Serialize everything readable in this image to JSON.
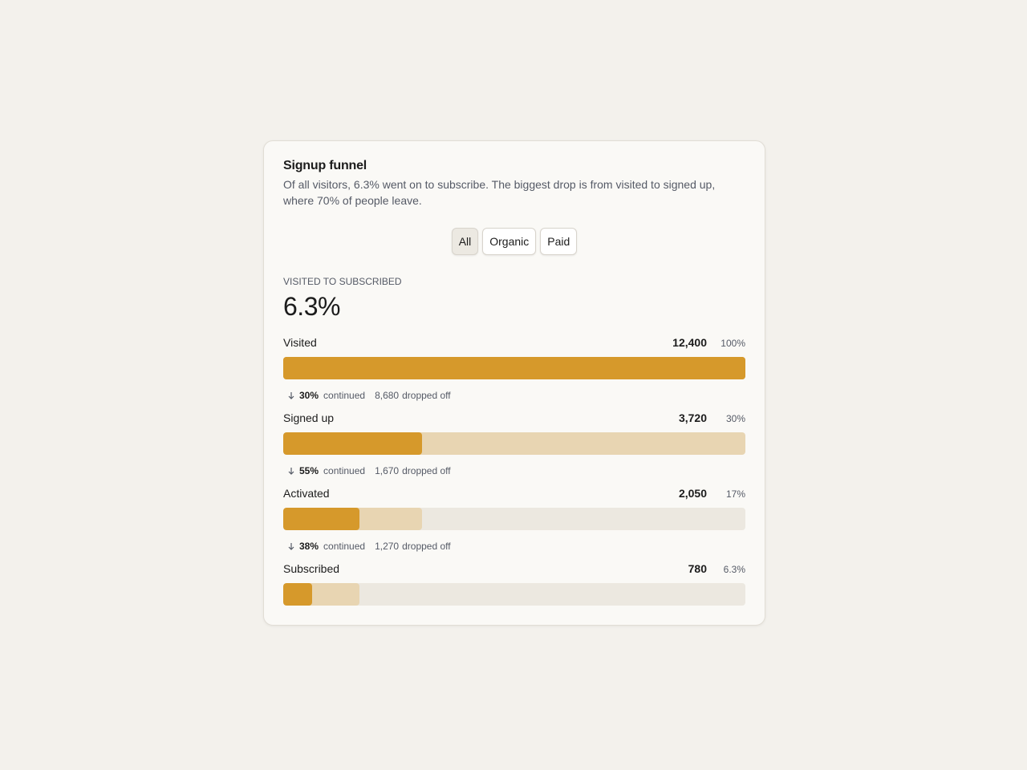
{
  "chart_data": {
    "type": "funnel",
    "title": "Signup funnel",
    "subtitle": "Of all visitors, 6.3% went on to subscribe. The biggest drop is from visited to signed up, where 70% of people leave.",
    "filters": [
      "All",
      "Organic",
      "Paid"
    ],
    "active_filter": 0,
    "kpi_label": "VISITED TO SUBSCRIBED",
    "kpi_value": "6.3%",
    "categories": [
      "Visited",
      "Signed up",
      "Activated",
      "Subscribed"
    ],
    "values": [
      12400,
      3720,
      2050,
      780
    ],
    "value_labels": [
      "12,400",
      "3,720",
      "2,050",
      "780"
    ],
    "shares": [
      "100%",
      "30%",
      "17%",
      "6.3%"
    ],
    "continued": [
      "30%",
      "55%",
      "38%"
    ],
    "continued_text": "continued",
    "dropped": [
      "8,680",
      "1,670",
      "1,270"
    ],
    "dropped_text": "dropped off",
    "color": "#d6992b",
    "previous_color": "#e8d5b2",
    "track_color": "#ece8e0"
  }
}
